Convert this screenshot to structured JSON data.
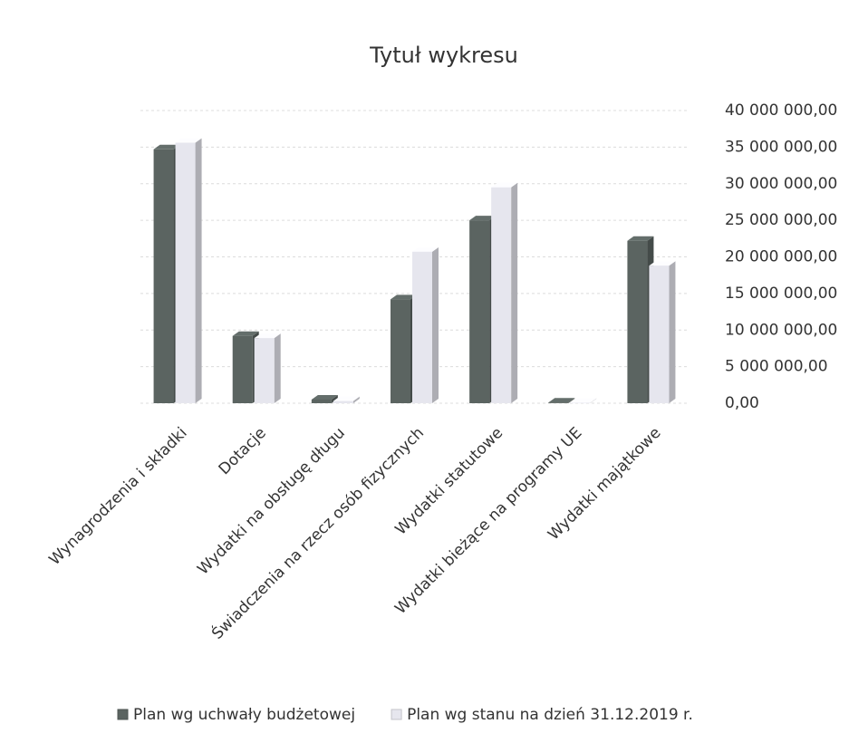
{
  "chart_data": {
    "type": "bar",
    "title": "Tytuł wykresu",
    "categories": [
      "Wynagrodzenia i składki",
      "Dotacje",
      "Wydatki na obsługę długu",
      "Świadczenia na rzecz osób fizycznych",
      "Wydatki statutowe",
      "Wydatki bieżące na programy UE",
      "Wydatki majątkowe"
    ],
    "series": [
      {
        "name": "Plan wg uchwały budżetowej",
        "color": "#5b6461",
        "values": [
          34700000,
          9200000,
          500000,
          14200000,
          25000000,
          100000,
          22200000
        ]
      },
      {
        "name": "Plan wg stanu na dzień 31.12.2019 r.",
        "color": "#e6e6ee",
        "values": [
          35600000,
          8900000,
          300000,
          20700000,
          29500000,
          50000,
          18800000
        ]
      }
    ],
    "ylim": [
      0,
      40000000
    ],
    "yticks": [
      {
        "value": 0,
        "label": "0,00"
      },
      {
        "value": 5000000,
        "label": "5 000 000,00"
      },
      {
        "value": 10000000,
        "label": "10 000 000,00"
      },
      {
        "value": 15000000,
        "label": "15 000 000,00"
      },
      {
        "value": 20000000,
        "label": "20 000 000,00"
      },
      {
        "value": 25000000,
        "label": "25 000 000,00"
      },
      {
        "value": 30000000,
        "label": "30 000 000,00"
      },
      {
        "value": 35000000,
        "label": "35 000 000,00"
      },
      {
        "value": 40000000,
        "label": "40 000 000,00"
      }
    ],
    "grid": true,
    "legend": "bottom"
  }
}
